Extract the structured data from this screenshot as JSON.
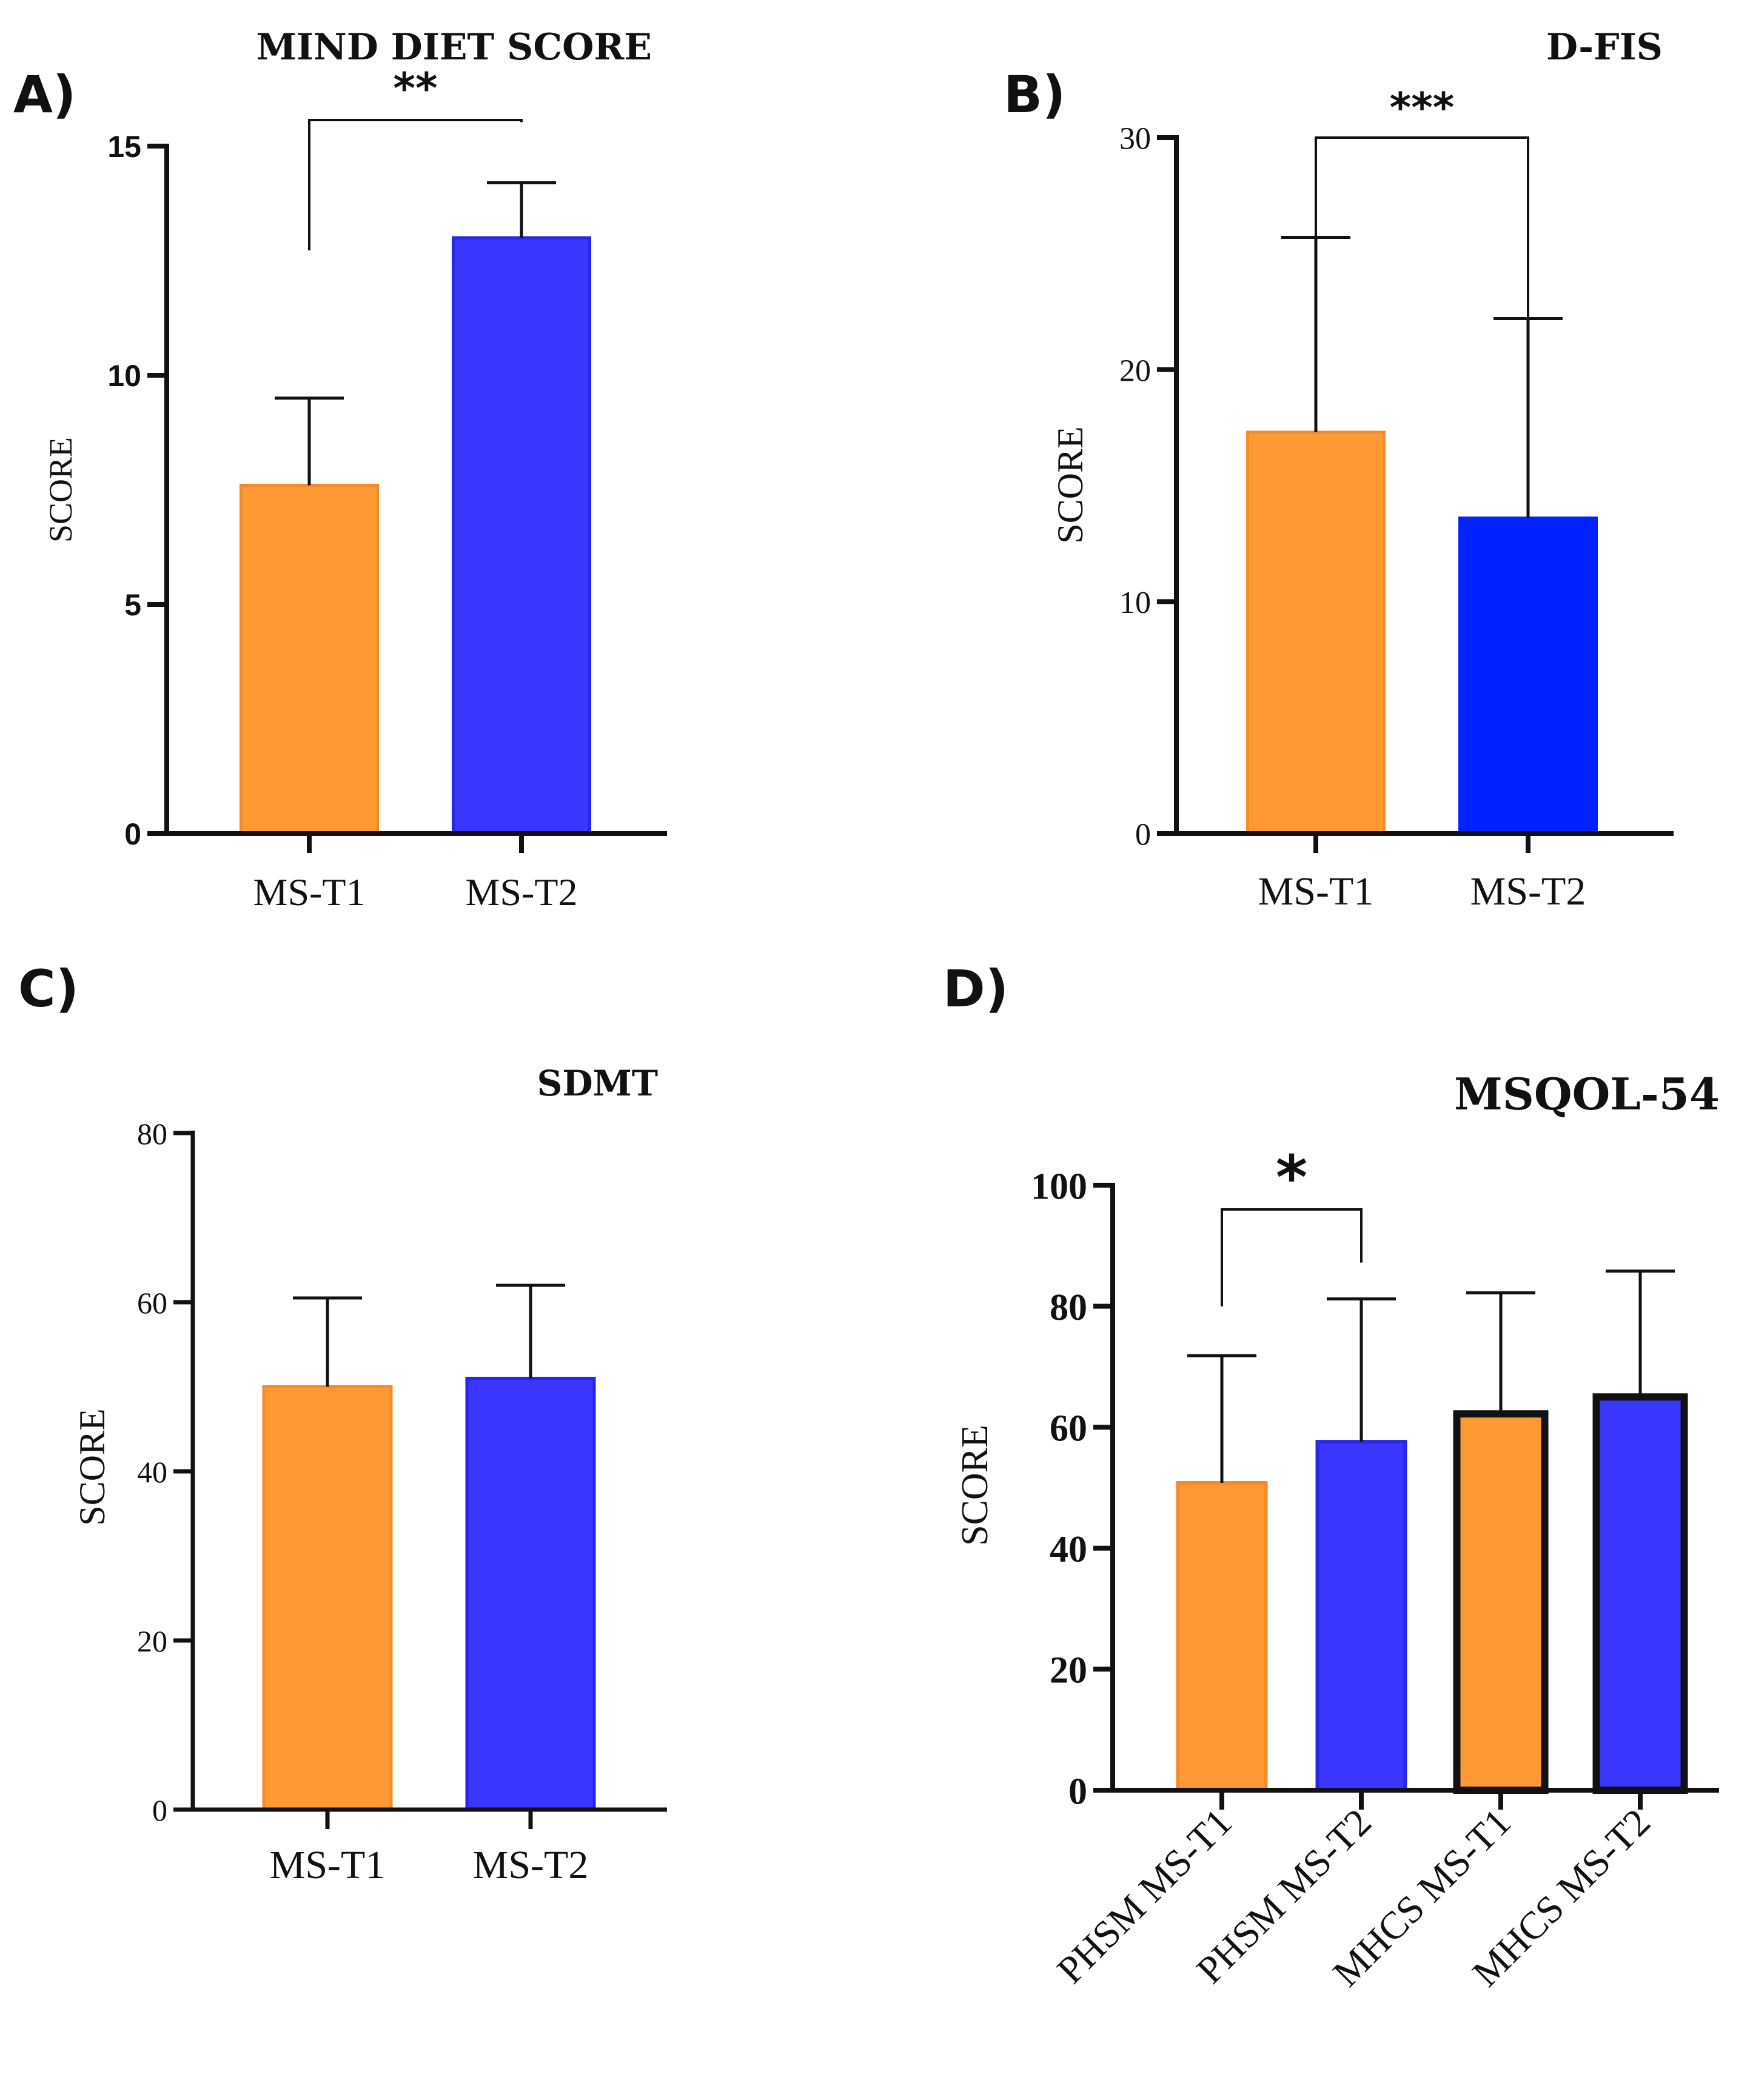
{
  "colors": {
    "orange": "#FF9933",
    "orange_edge": "#F58A2A",
    "blue_a": "#3A35FF",
    "blue_a_edge": "#2A25E8",
    "blue_b": "#0022FF",
    "dark_edge": "#111111"
  },
  "chart_data": [
    {
      "panel": "A)",
      "type": "bar",
      "title": "MIND DIET SCORE",
      "xlabel": "",
      "ylabel": "SCORE",
      "ylim": [
        0,
        15
      ],
      "yticks": [
        0,
        5,
        10,
        15
      ],
      "categories": [
        "MS-T1",
        "MS-T2"
      ],
      "values": [
        7.6,
        13.0
      ],
      "errors": [
        1.9,
        1.2
      ],
      "fill": [
        "orange",
        "blue_a"
      ],
      "edge": [
        "orange_edge",
        "blue_a_edge"
      ],
      "significance": [
        {
          "from": 0,
          "to": 1,
          "label": "**"
        }
      ]
    },
    {
      "panel": "B)",
      "type": "bar",
      "title": "D-FIS",
      "xlabel": "",
      "ylabel": "SCORE",
      "ylim": [
        0,
        30
      ],
      "yticks": [
        0,
        10,
        20,
        30
      ],
      "categories": [
        "MS-T1",
        "MS-T2"
      ],
      "values": [
        17.3,
        13.6
      ],
      "errors": [
        8.4,
        8.6
      ],
      "fill": [
        "orange",
        "blue_b"
      ],
      "edge": [
        "orange_edge",
        "blue_b"
      ],
      "significance": [
        {
          "from": 0,
          "to": 1,
          "label": "***"
        }
      ]
    },
    {
      "panel": "C)",
      "type": "bar",
      "title": "SDMT",
      "xlabel": "",
      "ylabel": "SCORE",
      "ylim": [
        0,
        80
      ],
      "yticks": [
        0,
        20,
        40,
        60,
        80
      ],
      "categories": [
        "MS-T1",
        "MS-T2"
      ],
      "values": [
        50.0,
        51.0
      ],
      "errors": [
        10.5,
        11.0
      ],
      "fill": [
        "orange",
        "blue_a"
      ],
      "edge": [
        "orange_edge",
        "blue_a_edge"
      ],
      "significance": []
    },
    {
      "panel": "D)",
      "type": "bar",
      "title": "MSQOL-54",
      "xlabel": "",
      "ylabel": "SCORE",
      "ylim": [
        0,
        100
      ],
      "yticks": [
        0,
        20,
        40,
        60,
        80,
        100
      ],
      "categories": [
        "PHSM MS-T1",
        "PHSM MS-T2",
        "MHCS MS-T1",
        "MHCS MS-T2"
      ],
      "values": [
        50.8,
        57.6,
        62.2,
        65.0
      ],
      "errors": [
        21.0,
        23.6,
        20.0,
        20.8
      ],
      "fill": [
        "orange",
        "blue_a",
        "orange",
        "blue_a"
      ],
      "edge": [
        "orange_edge",
        "blue_a_edge",
        "dark_edge",
        "dark_edge"
      ],
      "significance": [
        {
          "from": 0,
          "to": 1,
          "label": "*"
        }
      ]
    }
  ]
}
